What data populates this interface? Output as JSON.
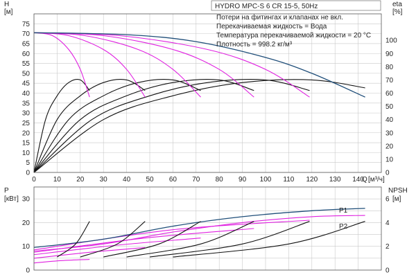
{
  "title_box": "HYDRO MPC-S 6 CR 15-5, 50Hz",
  "notes": [
    "Потери на фитингах и клапанах не вкл.",
    "Перекачиваемая жидкость = Вода",
    "Температура перекачиваемой жидкости = 20 °C",
    "Плотность = 998.2 кг/м³"
  ],
  "colors": {
    "pressure_curve": "#e020e0",
    "max_curve": "#1f4e79",
    "efficiency_curve": "#111111",
    "grid": "#c8c8c8"
  },
  "chart_data": [
    {
      "type": "line",
      "panel": "top",
      "x_axis": {
        "label": "Q",
        "unit": "[м³/ч]",
        "range": [
          0,
          150
        ],
        "ticks": [
          0,
          10,
          20,
          30,
          40,
          50,
          60,
          70,
          80,
          90,
          100,
          110,
          120,
          130,
          140
        ]
      },
      "y_axis_left": {
        "label": "H",
        "unit": "[м]",
        "range": [
          0,
          80
        ],
        "ticks": [
          0,
          5,
          10,
          15,
          20,
          25,
          30,
          35,
          40,
          45,
          50,
          55,
          60,
          65,
          70,
          75
        ]
      },
      "y_axis_right": {
        "label": "eta",
        "unit": "[%]",
        "range": [
          0,
          120
        ],
        "ticks": [
          0,
          10,
          20,
          30,
          40,
          50,
          60,
          70,
          80,
          90,
          100
        ]
      },
      "head_curves": [
        {
          "pumps": 1,
          "points": [
            [
              0,
              70.5
            ],
            [
              8,
              69
            ],
            [
              15,
              62
            ],
            [
              20,
              52
            ],
            [
              24,
              38
            ]
          ]
        },
        {
          "pumps": 2,
          "points": [
            [
              0,
              70.5
            ],
            [
              15,
              69
            ],
            [
              30,
              62
            ],
            [
              40,
              52
            ],
            [
              48,
              38
            ]
          ]
        },
        {
          "pumps": 3,
          "points": [
            [
              0,
              70.5
            ],
            [
              22,
              69
            ],
            [
              45,
              62
            ],
            [
              60,
              52
            ],
            [
              72,
              38
            ]
          ]
        },
        {
          "pumps": 4,
          "points": [
            [
              0,
              70.5
            ],
            [
              30,
              69
            ],
            [
              60,
              62
            ],
            [
              80,
              52
            ],
            [
              95,
              38
            ]
          ]
        },
        {
          "pumps": 5,
          "points": [
            [
              0,
              70.5
            ],
            [
              37,
              69
            ],
            [
              75,
              62
            ],
            [
              100,
              52
            ],
            [
              119,
              38
            ]
          ]
        },
        {
          "pumps": 6,
          "name_hint": "max",
          "points": [
            [
              0,
              70.5
            ],
            [
              40,
              69.5
            ],
            [
              70,
              66
            ],
            [
              100,
              58
            ],
            [
              120,
              50
            ],
            [
              143,
              38
            ]
          ]
        }
      ],
      "efficiency_curves": [
        {
          "pumps": 1,
          "points": [
            [
              0,
              0
            ],
            [
              5,
              40
            ],
            [
              10,
              58
            ],
            [
              15,
              68
            ],
            [
              20,
              70
            ],
            [
              24,
              62
            ]
          ]
        },
        {
          "pumps": 2,
          "points": [
            [
              0,
              0
            ],
            [
              10,
              40
            ],
            [
              20,
              58
            ],
            [
              30,
              68
            ],
            [
              40,
              70
            ],
            [
              48,
              62
            ]
          ]
        },
        {
          "pumps": 3,
          "points": [
            [
              0,
              0
            ],
            [
              15,
              40
            ],
            [
              30,
              58
            ],
            [
              45,
              68
            ],
            [
              60,
              70
            ],
            [
              72,
              62
            ]
          ]
        },
        {
          "pumps": 4,
          "points": [
            [
              0,
              0
            ],
            [
              20,
              40
            ],
            [
              40,
              58
            ],
            [
              60,
              68
            ],
            [
              80,
              70
            ],
            [
              95,
              62
            ]
          ]
        },
        {
          "pumps": 5,
          "points": [
            [
              0,
              0
            ],
            [
              25,
              40
            ],
            [
              50,
              58
            ],
            [
              75,
              68
            ],
            [
              100,
              70
            ],
            [
              119,
              62
            ]
          ]
        },
        {
          "pumps": 6,
          "points": [
            [
              0,
              0
            ],
            [
              30,
              40
            ],
            [
              60,
              58
            ],
            [
              90,
              68
            ],
            [
              120,
              70
            ],
            [
              143,
              64
            ]
          ]
        }
      ]
    },
    {
      "type": "line",
      "panel": "bottom",
      "x_axis": {
        "range": [
          0,
          150
        ]
      },
      "y_axis_left": {
        "label": "P",
        "unit": "[кВт]",
        "range": [
          0,
          35
        ],
        "ticks": [
          0,
          10,
          20,
          30
        ]
      },
      "y_axis_right": {
        "label": "NPSH",
        "unit": "[м]",
        "range": [
          0,
          7
        ],
        "ticks": [
          0,
          2,
          4,
          6
        ]
      },
      "series_labels": [
        "P1",
        "P2"
      ],
      "P1": {
        "points": [
          [
            0,
            9.5
          ],
          [
            30,
            13
          ],
          [
            60,
            18.5
          ],
          [
            90,
            22.5
          ],
          [
            120,
            25
          ],
          [
            143,
            26
          ]
        ]
      },
      "P2": {
        "points": [
          [
            0,
            8
          ],
          [
            30,
            11
          ],
          [
            60,
            16
          ],
          [
            90,
            20
          ],
          [
            120,
            22.5
          ],
          [
            143,
            23
          ]
        ]
      },
      "power_curves": [
        {
          "pumps": 1,
          "points": [
            [
              0,
              3
            ],
            [
              12,
              4
            ],
            [
              24,
              4.5
            ]
          ]
        },
        {
          "pumps": 2,
          "points": [
            [
              0,
              5
            ],
            [
              24,
              7.5
            ],
            [
              48,
              9.5
            ]
          ]
        },
        {
          "pumps": 3,
          "points": [
            [
              0,
              6.5
            ],
            [
              36,
              10.5
            ],
            [
              72,
              13.5
            ]
          ]
        },
        {
          "pumps": 4,
          "points": [
            [
              0,
              7.5
            ],
            [
              48,
              13.5
            ],
            [
              95,
              17.5
            ]
          ]
        },
        {
          "pumps": 5,
          "points": [
            [
              0,
              8.5
            ],
            [
              60,
              17
            ],
            [
              119,
              21
            ]
          ]
        }
      ],
      "npsh_curves": [
        {
          "pumps": 1,
          "points": [
            [
              10,
              1.1
            ],
            [
              18,
              2.2
            ],
            [
              24,
              4.1
            ]
          ]
        },
        {
          "pumps": 2,
          "points": [
            [
              20,
              1.1
            ],
            [
              36,
              2.2
            ],
            [
              48,
              4.1
            ]
          ]
        },
        {
          "pumps": 3,
          "points": [
            [
              30,
              1.1
            ],
            [
              54,
              2.2
            ],
            [
              72,
              4.1
            ]
          ]
        },
        {
          "pumps": 4,
          "points": [
            [
              40,
              1.1
            ],
            [
              72,
              2.2
            ],
            [
              95,
              4.1
            ]
          ]
        },
        {
          "pumps": 5,
          "points": [
            [
              50,
              1.1
            ],
            [
              90,
              2.2
            ],
            [
              119,
              4.1
            ]
          ]
        },
        {
          "pumps": 6,
          "points": [
            [
              60,
              1.1
            ],
            [
              110,
              2.2
            ],
            [
              143,
              4.1
            ]
          ]
        }
      ]
    }
  ]
}
